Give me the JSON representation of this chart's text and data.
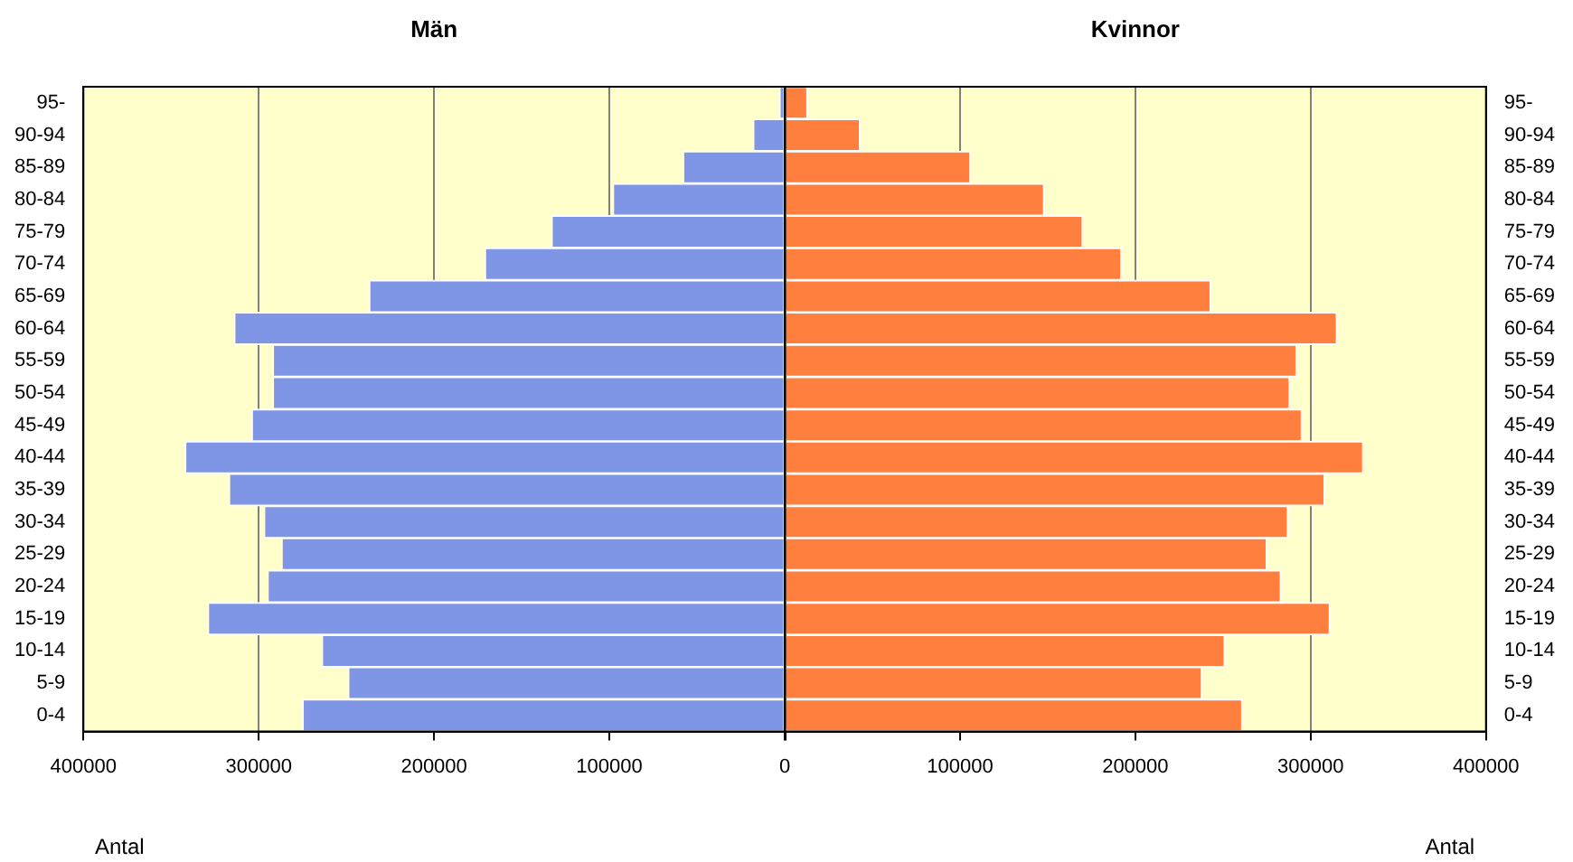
{
  "chart_data": {
    "type": "bar",
    "orientation": "horizontal",
    "stacked": true,
    "categories": [
      "95-",
      "90-94",
      "85-89",
      "80-84",
      "75-79",
      "70-74",
      "65-69",
      "60-64",
      "55-59",
      "50-54",
      "45-49",
      "40-44",
      "35-39",
      "30-34",
      "25-29",
      "20-24",
      "15-19",
      "10-14",
      "5-9",
      "0-4"
    ],
    "series": [
      {
        "color": "#7f96e6",
        "values": [
          -3000,
          -18000,
          -58000,
          -98000,
          -133000,
          -171000,
          -237000,
          -314000,
          -292000,
          -292000,
          -304000,
          -342000,
          -317000,
          -297000,
          -287000,
          -295000,
          -329000,
          -264000,
          -249000,
          -275000
        ]
      },
      {
        "color": "#ff7f3f",
        "values": [
          13000,
          43000,
          106000,
          148000,
          170000,
          192000,
          243000,
          315000,
          292000,
          288000,
          295000,
          330000,
          308000,
          287000,
          275000,
          283000,
          311000,
          251000,
          238000,
          261000
        ]
      }
    ],
    "xlim": [
      -400000,
      400000
    ],
    "xticks": [
      {
        "value": -400000,
        "label": "400000"
      },
      {
        "value": -300000,
        "label": "300000"
      },
      {
        "value": -200000,
        "label": "200000"
      },
      {
        "value": -100000,
        "label": "100000"
      },
      0,
      100000,
      200000,
      300000,
      400000
    ],
    "grid": "x",
    "legend": false,
    "annotations": [
      "Män",
      "Kvinnor",
      "Antal",
      "Antal"
    ]
  }
}
